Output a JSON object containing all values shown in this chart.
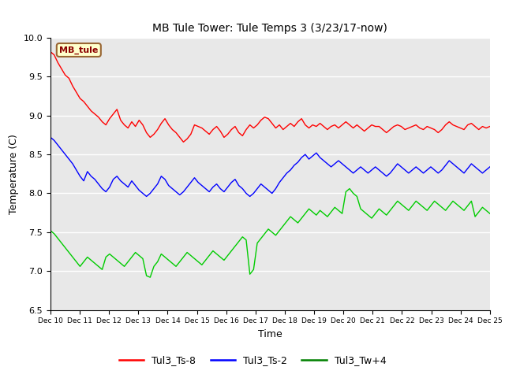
{
  "title": "MB Tule Tower: Tule Temps 3 (3/23/17-now)",
  "xlabel": "Time",
  "ylabel": "Temperature (C)",
  "ylim": [
    6.5,
    10.0
  ],
  "xlim": [
    0,
    15
  ],
  "x_tick_labels": [
    "Dec 10",
    "Dec 11",
    "Dec 12",
    "Dec 13",
    "Dec 14",
    "Dec 15",
    "Dec 16",
    "Dec 17",
    "Dec 18",
    "Dec 19",
    "Dec 20",
    "Dec 21",
    "Dec 22",
    "Dec 23",
    "Dec 24",
    "Dec 25"
  ],
  "bg_color": "#e8e8e8",
  "legend_entries": [
    "Tul3_Ts-8",
    "Tul3_Ts-2",
    "Tul3_Tw+4"
  ],
  "legend_colors": [
    "red",
    "blue",
    "green"
  ],
  "label_box_text": "MB_tule",
  "label_box_color": "#ffffcc",
  "label_box_edge": "#996633",
  "series_colors": [
    "red",
    "blue",
    "#00cc00"
  ],
  "linewidth": 1.0,
  "red_data": [
    9.82,
    9.78,
    9.68,
    9.6,
    9.52,
    9.48,
    9.38,
    9.3,
    9.22,
    9.18,
    9.12,
    9.06,
    9.02,
    8.98,
    8.92,
    8.88,
    8.96,
    9.02,
    9.08,
    8.94,
    8.88,
    8.84,
    8.92,
    8.86,
    8.94,
    8.88,
    8.78,
    8.72,
    8.76,
    8.82,
    8.9,
    8.96,
    8.88,
    8.82,
    8.78,
    8.72,
    8.66,
    8.7,
    8.76,
    8.88,
    8.86,
    8.84,
    8.8,
    8.76,
    8.82,
    8.86,
    8.8,
    8.72,
    8.76,
    8.82,
    8.86,
    8.78,
    8.74,
    8.82,
    8.88,
    8.84,
    8.88,
    8.94,
    8.98,
    8.96,
    8.9,
    8.84,
    8.88,
    8.82,
    8.86,
    8.9,
    8.86,
    8.92,
    8.96,
    8.88,
    8.84,
    8.88,
    8.86,
    8.9,
    8.86,
    8.82,
    8.86,
    8.88,
    8.84,
    8.88,
    8.92,
    8.88,
    8.84,
    8.88,
    8.84,
    8.8,
    8.84,
    8.88,
    8.86,
    8.86,
    8.82,
    8.78,
    8.82,
    8.86,
    8.88,
    8.86,
    8.82,
    8.84,
    8.86,
    8.88,
    8.84,
    8.82,
    8.86,
    8.84,
    8.82,
    8.78,
    8.82,
    8.88,
    8.92,
    8.88,
    8.86,
    8.84,
    8.82,
    8.88,
    8.9,
    8.86,
    8.82,
    8.86,
    8.84,
    8.86
  ],
  "blue_data": [
    8.72,
    8.68,
    8.62,
    8.56,
    8.5,
    8.44,
    8.38,
    8.3,
    8.22,
    8.16,
    8.28,
    8.22,
    8.18,
    8.12,
    8.06,
    8.02,
    8.08,
    8.18,
    8.22,
    8.16,
    8.12,
    8.08,
    8.16,
    8.1,
    8.04,
    8.0,
    7.96,
    8.0,
    8.06,
    8.12,
    8.22,
    8.18,
    8.1,
    8.06,
    8.02,
    7.98,
    8.02,
    8.08,
    8.14,
    8.2,
    8.14,
    8.1,
    8.06,
    8.02,
    8.08,
    8.12,
    8.06,
    8.02,
    8.08,
    8.14,
    8.18,
    8.1,
    8.06,
    8.0,
    7.96,
    8.0,
    8.06,
    8.12,
    8.08,
    8.04,
    8.0,
    8.06,
    8.14,
    8.2,
    8.26,
    8.3,
    8.36,
    8.4,
    8.46,
    8.5,
    8.44,
    8.48,
    8.52,
    8.46,
    8.42,
    8.38,
    8.34,
    8.38,
    8.42,
    8.38,
    8.34,
    8.3,
    8.26,
    8.3,
    8.34,
    8.3,
    8.26,
    8.3,
    8.34,
    8.3,
    8.26,
    8.22,
    8.26,
    8.32,
    8.38,
    8.34,
    8.3,
    8.26,
    8.3,
    8.34,
    8.3,
    8.26,
    8.3,
    8.34,
    8.3,
    8.26,
    8.3,
    8.36,
    8.42,
    8.38,
    8.34,
    8.3,
    8.26,
    8.32,
    8.38,
    8.34,
    8.3,
    8.26,
    8.3,
    8.34
  ],
  "green_data": [
    7.52,
    7.48,
    7.42,
    7.36,
    7.3,
    7.24,
    7.18,
    7.12,
    7.06,
    7.12,
    7.18,
    7.14,
    7.1,
    7.06,
    7.02,
    7.18,
    7.22,
    7.18,
    7.14,
    7.1,
    7.06,
    7.12,
    7.18,
    7.24,
    7.2,
    7.16,
    6.94,
    6.92,
    7.06,
    7.12,
    7.22,
    7.18,
    7.14,
    7.1,
    7.06,
    7.12,
    7.18,
    7.24,
    7.2,
    7.16,
    7.12,
    7.08,
    7.14,
    7.2,
    7.26,
    7.22,
    7.18,
    7.14,
    7.2,
    7.26,
    7.32,
    7.38,
    7.44,
    7.4,
    6.96,
    7.02,
    7.36,
    7.42,
    7.48,
    7.54,
    7.5,
    7.46,
    7.52,
    7.58,
    7.64,
    7.7,
    7.66,
    7.62,
    7.68,
    7.74,
    7.8,
    7.76,
    7.72,
    7.78,
    7.74,
    7.7,
    7.76,
    7.82,
    7.78,
    7.74,
    8.02,
    8.06,
    8.0,
    7.96,
    7.8,
    7.76,
    7.72,
    7.68,
    7.74,
    7.8,
    7.76,
    7.72,
    7.78,
    7.84,
    7.9,
    7.86,
    7.82,
    7.78,
    7.84,
    7.9,
    7.86,
    7.82,
    7.78,
    7.84,
    7.9,
    7.86,
    7.82,
    7.78,
    7.84,
    7.9,
    7.86,
    7.82,
    7.78,
    7.84,
    7.9,
    7.7,
    7.76,
    7.82,
    7.78,
    7.74
  ]
}
